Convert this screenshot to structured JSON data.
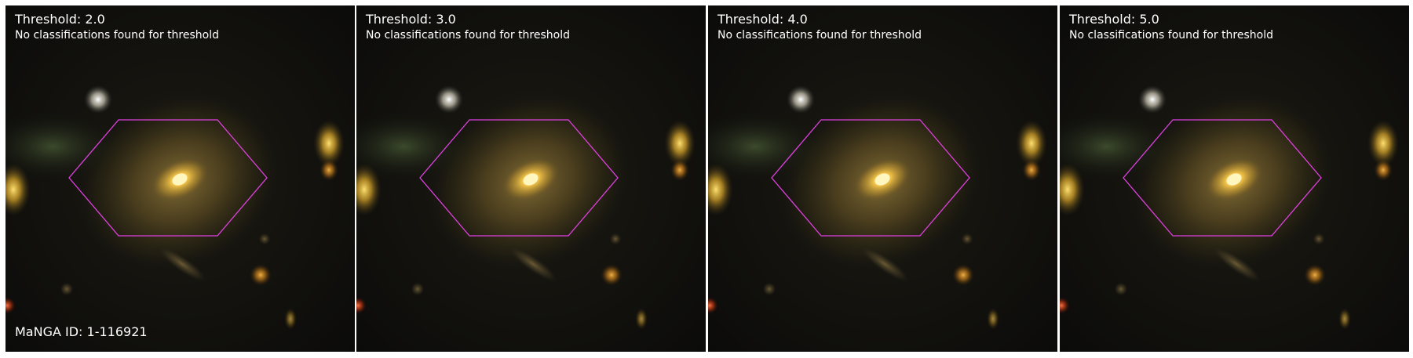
{
  "figure": {
    "hexagon_color": "#e040e0",
    "background_color": "#ffffff",
    "manga_id_label": "MaNGA ID: 1-116921",
    "panels": [
      {
        "title": "Threshold: 2.0",
        "message": "No classifications found for threshold"
      },
      {
        "title": "Threshold: 3.0",
        "message": "No classifications found for threshold"
      },
      {
        "title": "Threshold: 4.0",
        "message": "No classifications found for threshold"
      },
      {
        "title": "Threshold: 5.0",
        "message": "No classifications found for threshold"
      }
    ]
  }
}
